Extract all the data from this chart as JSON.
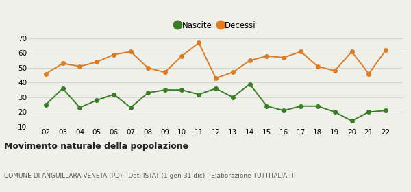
{
  "years": [
    2,
    3,
    4,
    5,
    6,
    7,
    8,
    9,
    10,
    11,
    12,
    13,
    14,
    15,
    16,
    17,
    18,
    19,
    20,
    21,
    22
  ],
  "nascite": [
    25,
    36,
    23,
    28,
    32,
    23,
    33,
    35,
    35,
    32,
    36,
    30,
    39,
    24,
    21,
    24,
    24,
    20,
    14,
    20,
    21
  ],
  "decessi": [
    46,
    53,
    51,
    54,
    59,
    61,
    50,
    47,
    58,
    67,
    43,
    47,
    55,
    58,
    57,
    61,
    51,
    48,
    61,
    46,
    62
  ],
  "nascite_color": "#3a7d27",
  "decessi_color": "#e07b20",
  "background_color": "#f0f0eb",
  "title": "Movimento naturale della popolazione",
  "subtitle": "COMUNE DI ANGUILLARA VENETA (PD) - Dati ISTAT (1 gen-31 dic) - Elaborazione TUTTITALIA.IT",
  "legend_labels": [
    "Nascite",
    "Decessi"
  ],
  "ylim": [
    10,
    70
  ],
  "yticks": [
    10,
    20,
    30,
    40,
    50,
    60,
    70
  ],
  "grid_color": "#d0d0d0",
  "marker_size": 4,
  "line_width": 1.4,
  "title_fontsize": 9,
  "subtitle_fontsize": 6.5,
  "tick_fontsize": 7.5,
  "legend_fontsize": 8.5
}
